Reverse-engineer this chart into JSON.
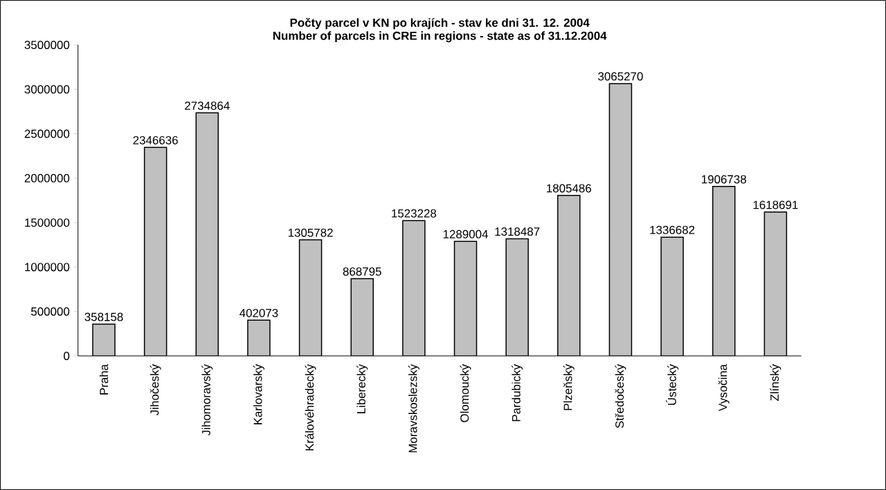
{
  "chart_data": {
    "type": "bar",
    "title": "Počty parcel v KN po krajích - stav ke dni 31. 12. 2004",
    "subtitle": "Number of parcels in CRE in regions - state as of 31.12.2004",
    "categories": [
      "Praha",
      "Jihočeský",
      "Jihomoravský",
      "Karlovarský",
      "Královéhradecký",
      "Liberecký",
      "Moravskoslezský",
      "Olomoucký",
      "Pardubický",
      "Plzeňský",
      "Středočeský",
      "Ústecký",
      "Vysočina",
      "Zlínský"
    ],
    "values": [
      358158,
      2346636,
      2734864,
      402073,
      1305782,
      868795,
      1523228,
      1289004,
      1318487,
      1805486,
      3065270,
      1336682,
      1906738,
      1618691
    ],
    "color": "#c0c0c0",
    "data_labels": true,
    "ylim": [
      0,
      3500000
    ],
    "yticks": [
      0,
      500000,
      1000000,
      1500000,
      2000000,
      2500000,
      3000000,
      3500000
    ]
  }
}
